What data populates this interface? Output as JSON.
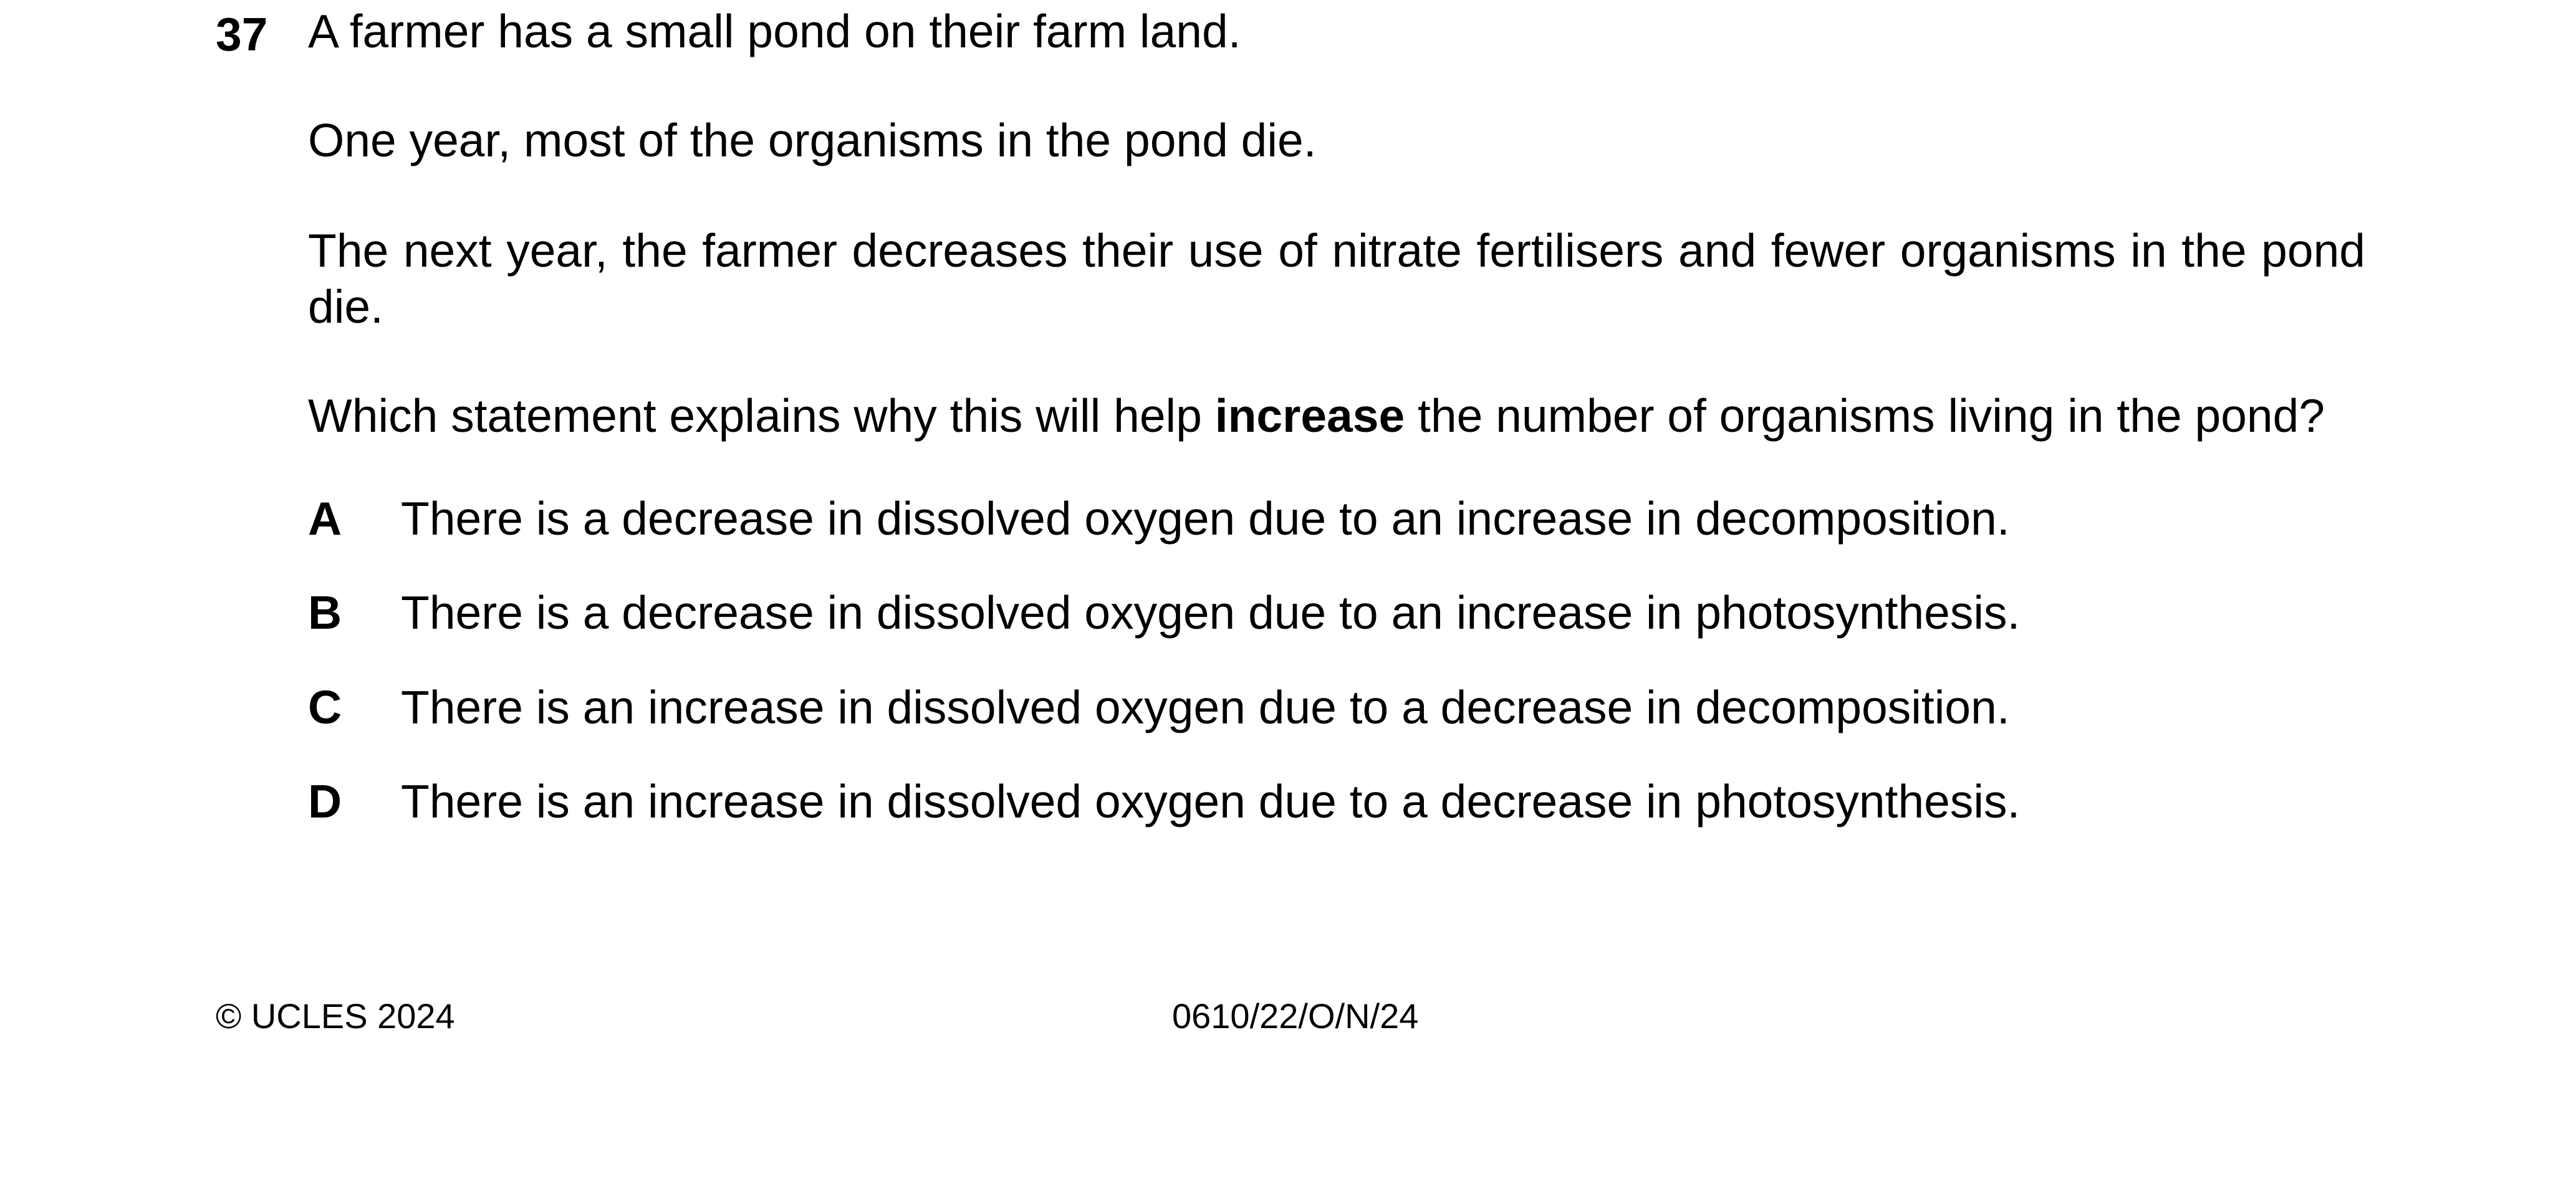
{
  "question": {
    "number": "37",
    "paragraphs": [
      "A farmer has a small pond on their farm land.",
      "One year, most of the organisms in the pond die.",
      "The next year, the farmer decreases their use of nitrate fertilisers and fewer organisms in the pond die."
    ],
    "stem": {
      "before": "Which statement explains why this will help ",
      "emphasis": "increase",
      "after": " the number of organisms living in the pond?"
    },
    "options": [
      {
        "letter": "A",
        "text": "There is a decrease in dissolved oxygen due to an increase in decomposition."
      },
      {
        "letter": "B",
        "text": "There is a decrease in dissolved oxygen due to an increase in photosynthesis."
      },
      {
        "letter": "C",
        "text": "There is an increase in dissolved oxygen due to a decrease in decomposition."
      },
      {
        "letter": "D",
        "text": "There is an increase in dissolved oxygen due to a decrease in photosynthesis."
      }
    ]
  },
  "footer": {
    "copyright": "© UCLES 2024",
    "paper_code": "0610/22/O/N/24"
  }
}
